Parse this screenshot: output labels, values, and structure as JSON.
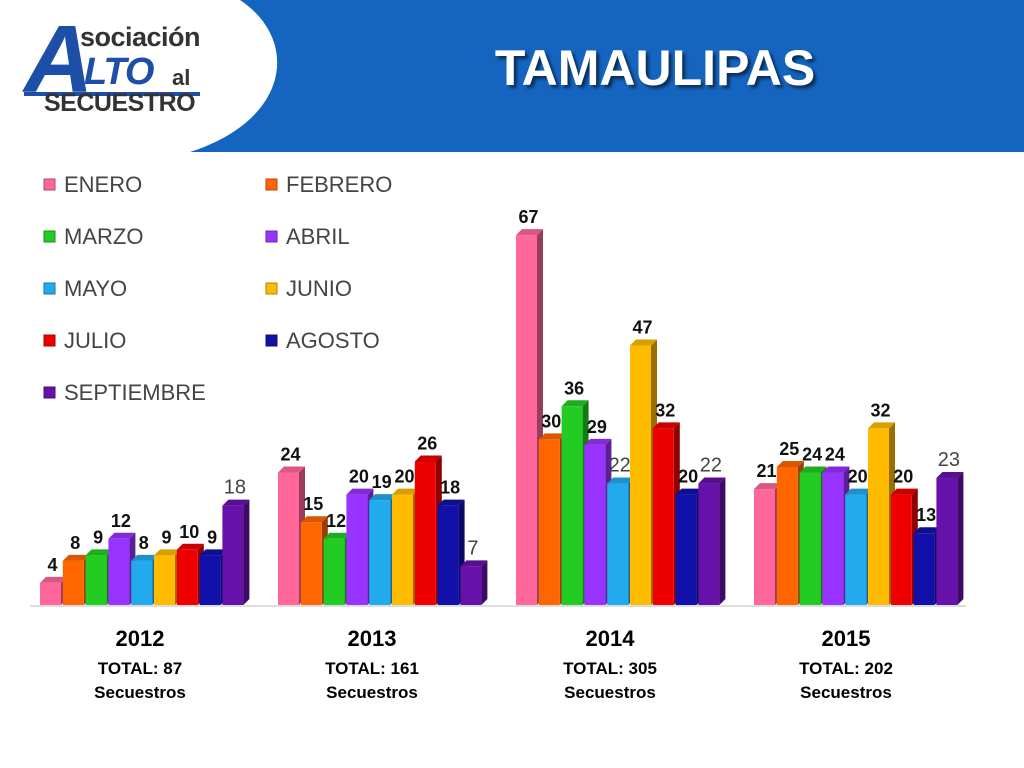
{
  "header": {
    "title": "TAMAULIPAS",
    "logo": {
      "big_letter": "A",
      "line1": "sociación",
      "line2": "LTO",
      "line2_sub": "al",
      "line3": "SECUESTRO"
    },
    "colors": {
      "banner": "#1565c0",
      "logo_blue": "#1d4ea8"
    }
  },
  "chart_data": {
    "type": "bar",
    "categories": [
      "2012",
      "2013",
      "2014",
      "2015"
    ],
    "category_totals": [
      "TOTAL: 87",
      "TOTAL: 161",
      "TOTAL: 305",
      "TOTAL: 202"
    ],
    "category_notes": [
      "Secuestros",
      "Secuestros",
      "Secuestros",
      "Secuestros"
    ],
    "ylim": [
      0,
      70
    ],
    "grid": false,
    "legend_position": "top-left",
    "series": [
      {
        "name": "ENERO",
        "color": "#ff6699",
        "values": [
          4,
          24,
          67,
          21
        ]
      },
      {
        "name": "FEBRERO",
        "color": "#ff6600",
        "values": [
          8,
          15,
          30,
          25
        ]
      },
      {
        "name": "MARZO",
        "color": "#22cc22",
        "values": [
          9,
          12,
          36,
          24
        ]
      },
      {
        "name": "ABRIL",
        "color": "#9933ff",
        "values": [
          12,
          20,
          29,
          24
        ]
      },
      {
        "name": "MAYO",
        "color": "#22aaee",
        "values": [
          8,
          19,
          22,
          20
        ]
      },
      {
        "name": "JUNIO",
        "color": "#ffbb00",
        "values": [
          9,
          20,
          47,
          32
        ]
      },
      {
        "name": "JULIO",
        "color": "#ee0000",
        "values": [
          10,
          26,
          32,
          20
        ]
      },
      {
        "name": "AGOSTO",
        "color": "#1111aa",
        "values": [
          9,
          18,
          20,
          13
        ]
      },
      {
        "name": "SEPTIEMBRE",
        "color": "#6611aa",
        "values": [
          18,
          7,
          22,
          23
        ]
      }
    ]
  }
}
